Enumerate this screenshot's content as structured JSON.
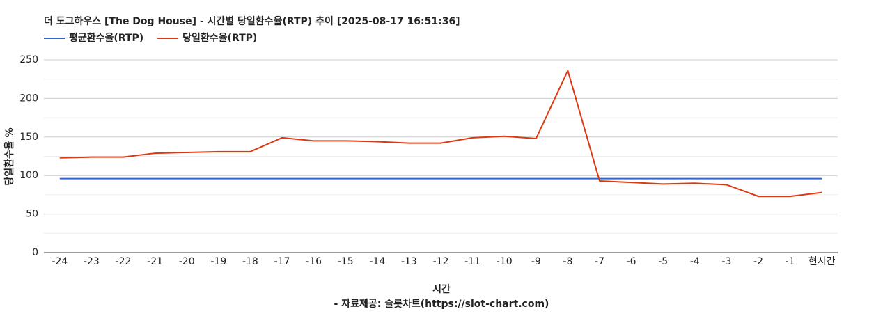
{
  "chart_data": {
    "type": "line",
    "title": "더 도그하우스 [The Dog House] - 시간별 당일환수율(RTP) 추이 [2025-08-17 16:51:36]",
    "x_label": "시간",
    "y_label": "당일환수율 %",
    "source": "- 자료제공: 슬롯차트(https://slot-chart.com)",
    "categories": [
      "-24",
      "-23",
      "-22",
      "-21",
      "-20",
      "-19",
      "-18",
      "-17",
      "-16",
      "-15",
      "-14",
      "-13",
      "-12",
      "-11",
      "-10",
      "-9",
      "-8",
      "-7",
      "-6",
      "-5",
      "-4",
      "-3",
      "-2",
      "-1",
      "현시간"
    ],
    "series": [
      {
        "name": "평균환수율(RTP)",
        "color": "#3366cc",
        "values": [
          96,
          96,
          96,
          96,
          96,
          96,
          96,
          96,
          96,
          96,
          96,
          96,
          96,
          96,
          96,
          96,
          96,
          96,
          96,
          96,
          96,
          96,
          96,
          96,
          96
        ]
      },
      {
        "name": "당일환수율(RTP)",
        "color": "#dc3912",
        "values": [
          123,
          124,
          124,
          129,
          130,
          131,
          131,
          149,
          145,
          145,
          144,
          142,
          142,
          149,
          151,
          148,
          236,
          93,
          91,
          89,
          90,
          88,
          73,
          73,
          78
        ]
      }
    ],
    "ylim": [
      0,
      250
    ],
    "yticks": [
      0,
      50,
      100,
      150,
      200,
      250
    ],
    "grid": true,
    "legend": "top-left"
  }
}
